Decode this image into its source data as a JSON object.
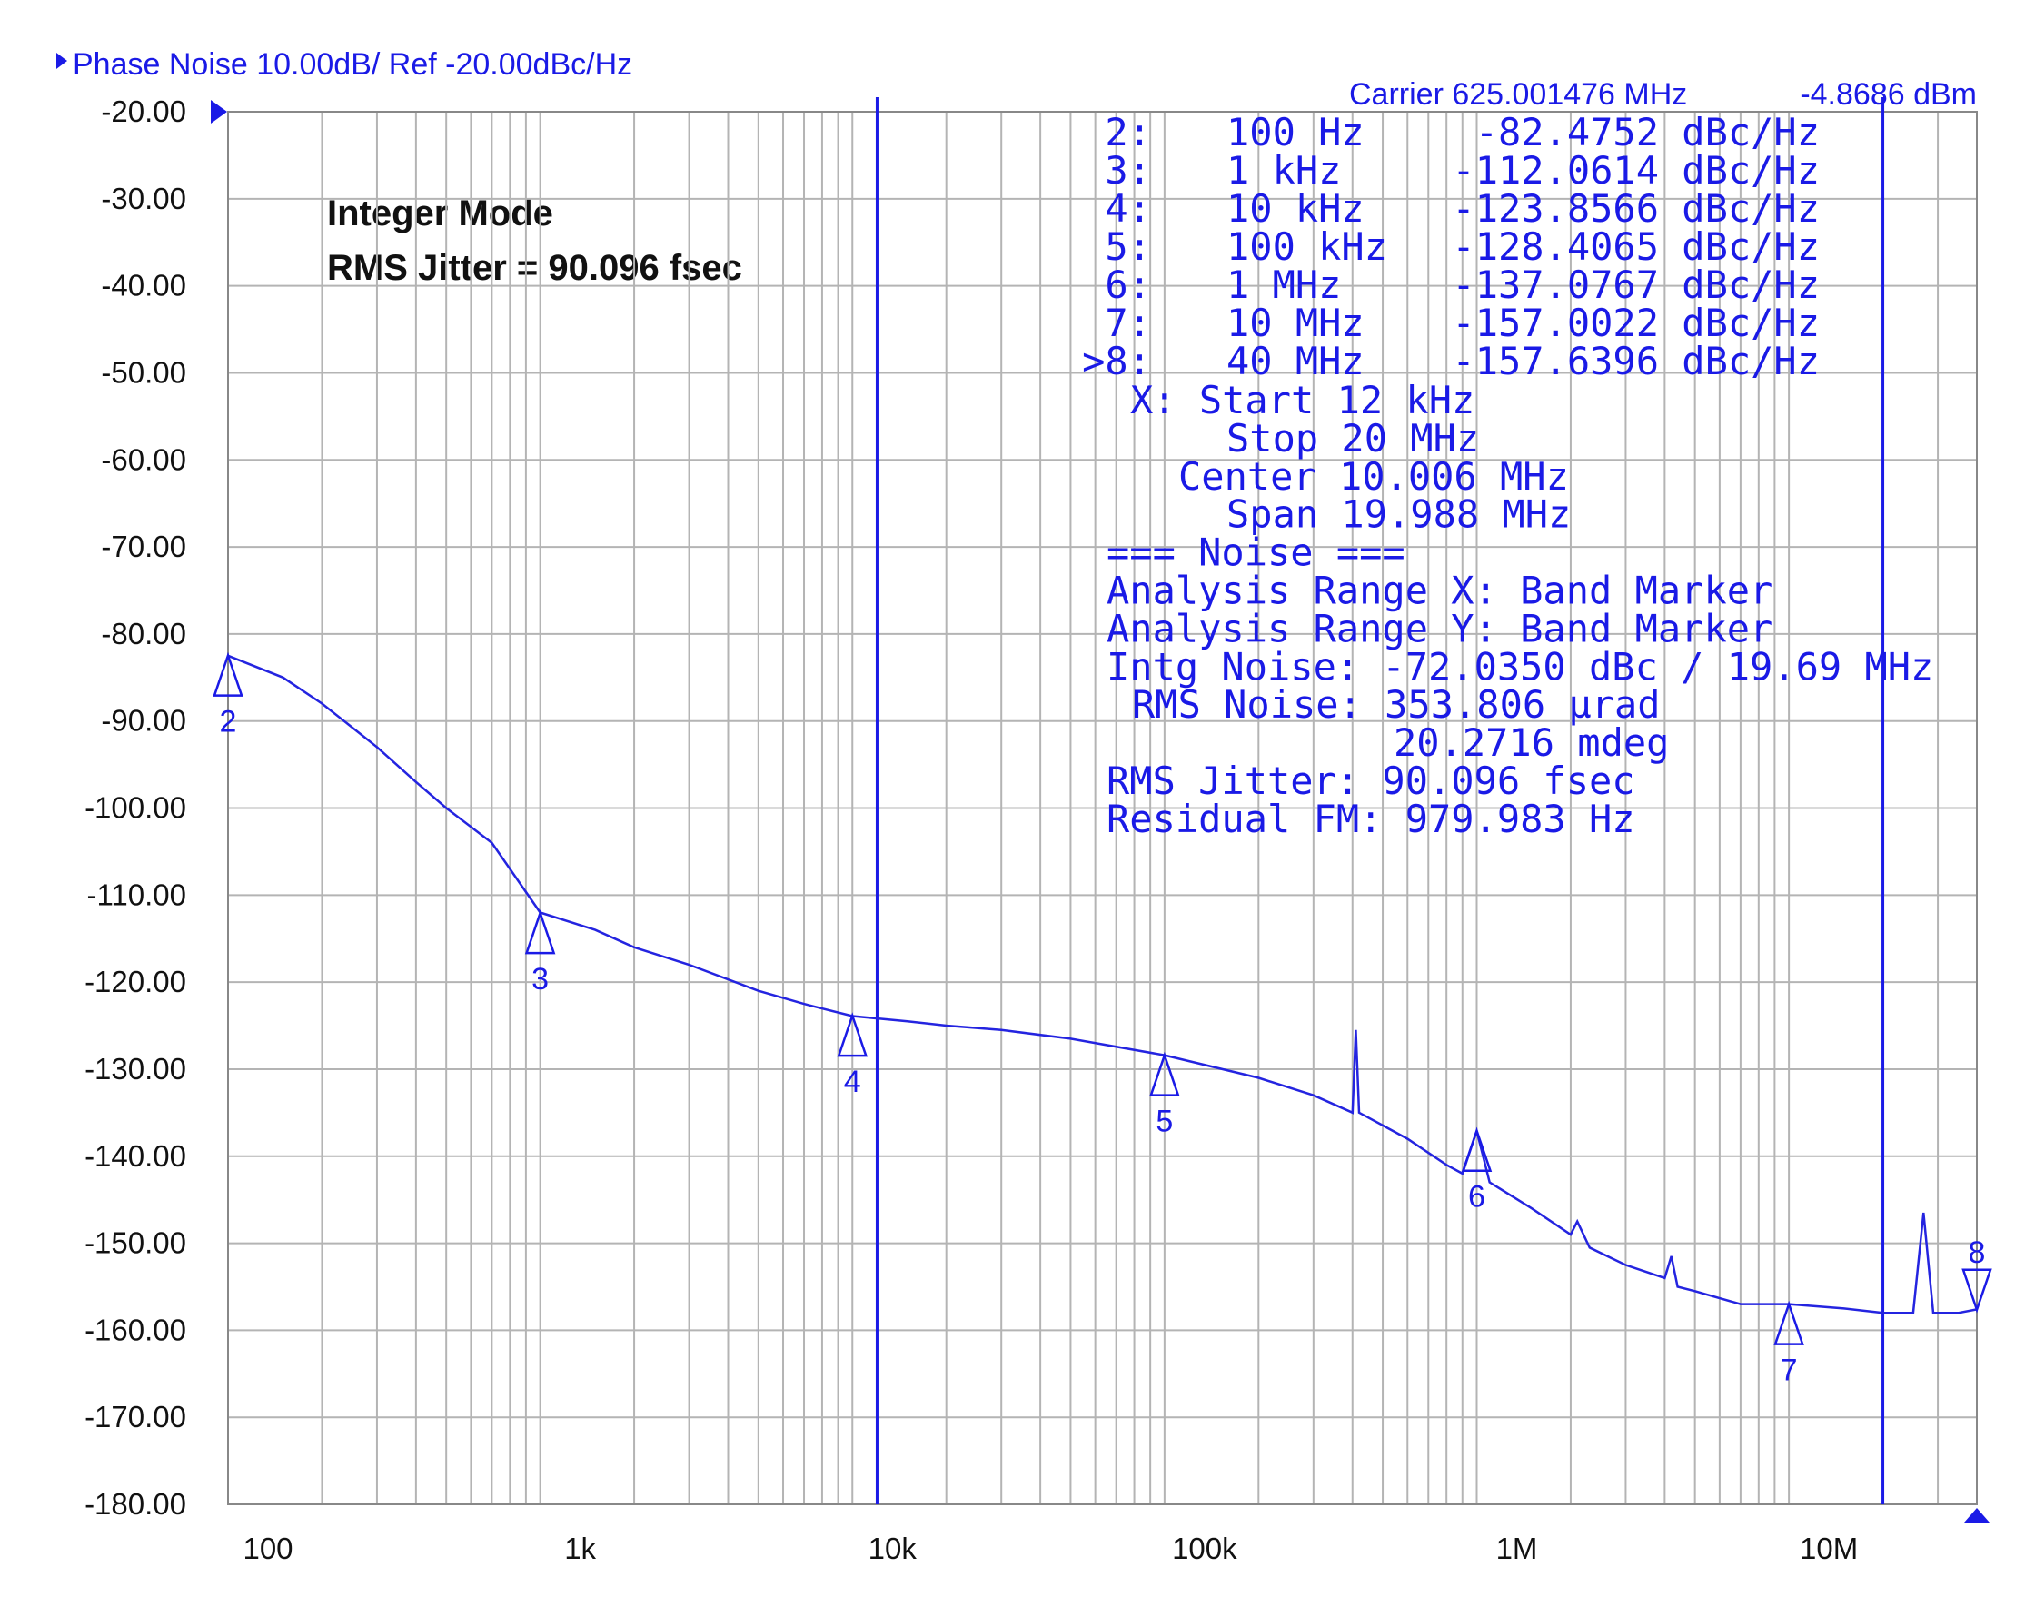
{
  "chart_data": {
    "type": "line",
    "title": "Phase Noise 10.00dB/ Ref -20.00dBc/Hz",
    "carrier": "Carrier 625.001476 MHz",
    "carrier_power": "-4.8686 dBm",
    "annotations": [
      "Integer Mode",
      "RMS Jitter = 90.096 fsec"
    ],
    "x": [
      100,
      150,
      200,
      300,
      400,
      500,
      700,
      1000,
      1500,
      2000,
      3000,
      5000,
      7000,
      10000,
      15000,
      20000,
      30000,
      50000,
      100000,
      200000,
      300000,
      400000,
      410000,
      420000,
      600000,
      800000,
      900000,
      1000000,
      1100000,
      1500000,
      2000000,
      2100000,
      2300000,
      3000000,
      4000000,
      4200000,
      4400000,
      5000000,
      7000000,
      10000000,
      15000000,
      20000000,
      25000000,
      27000000,
      29000000,
      35000000,
      40000000
    ],
    "series": [
      {
        "color": "#2424e0",
        "values": [
          -82.5,
          -85,
          -88,
          -93,
          -97,
          -100,
          -104,
          -112,
          -114,
          -116,
          -118,
          -121,
          -122.5,
          -123.9,
          -124.5,
          -125,
          -125.5,
          -126.5,
          -128.4,
          -131,
          -133,
          -135,
          -125.5,
          -135,
          -138,
          -141,
          -142,
          -137.1,
          -143,
          -146,
          -149,
          -147.5,
          -150.5,
          -152.5,
          -154,
          -151.5,
          -155,
          -155.5,
          -157,
          -157,
          -157.5,
          -158,
          -158,
          -146.5,
          -158,
          -158,
          -157.6
        ]
      }
    ],
    "markers": [
      {
        "tag": "2:",
        "glyph": "2",
        "x": 100,
        "x_label": "100 Hz",
        "y": -82.4752,
        "y_label": "-82.4752 dBc/Hz"
      },
      {
        "tag": "3:",
        "glyph": "3",
        "x": 1000,
        "x_label": "1 kHz",
        "y": -112.0614,
        "y_label": "-112.0614 dBc/Hz"
      },
      {
        "tag": "4:",
        "glyph": "4",
        "x": 10000,
        "x_label": "10 kHz",
        "y": -123.8566,
        "y_label": "-123.8566 dBc/Hz"
      },
      {
        "tag": "5:",
        "glyph": "5",
        "x": 100000,
        "x_label": "100 kHz",
        "y": -128.4065,
        "y_label": "-128.4065 dBc/Hz"
      },
      {
        "tag": "6:",
        "glyph": "6",
        "x": 1000000,
        "x_label": "1 MHz",
        "y": -137.0767,
        "y_label": "-137.0767 dBc/Hz"
      },
      {
        "tag": "7:",
        "glyph": "7",
        "x": 10000000,
        "x_label": "10 MHz",
        "y": -157.0022,
        "y_label": "-157.0022 dBc/Hz"
      },
      {
        "tag": ">8:",
        "glyph": "8",
        "x": 40000000,
        "x_label": "40 MHz",
        "y": -157.6396,
        "y_label": "-157.6396 dBc/Hz"
      }
    ],
    "band": [
      12000,
      20000000
    ],
    "readout": [
      "X: Start 12 kHz",
      "Stop 20 MHz",
      "Center 10.006 MHz",
      "Span 19.988 MHz",
      "=== Noise ===",
      "Analysis Range X: Band Marker",
      "Analysis Range Y: Band Marker",
      "Intg Noise: -72.0350 dBc / 19.69 MHz",
      "RMS Noise: 353.806 µrad",
      "20.2716 mdeg",
      "RMS Jitter: 90.096 fsec",
      "Residual FM: 979.983 Hz"
    ],
    "xscale": "log",
    "grid": true,
    "xlim": [
      100,
      40000000
    ],
    "ylim": [
      -180,
      -20
    ],
    "xticks": [
      {
        "value": 100,
        "label": "100"
      },
      {
        "value": 1000,
        "label": "1k"
      },
      {
        "value": 10000,
        "label": "10k"
      },
      {
        "value": 100000,
        "label": "100k"
      },
      {
        "value": 1000000,
        "label": "1M"
      },
      {
        "value": 10000000,
        "label": "10M"
      }
    ],
    "yticks": [
      {
        "value": -20,
        "label": "-20.00"
      },
      {
        "value": -30,
        "label": "-30.00"
      },
      {
        "value": -40,
        "label": "-40.00"
      },
      {
        "value": -50,
        "label": "-50.00"
      },
      {
        "value": -60,
        "label": "-60.00"
      },
      {
        "value": -70,
        "label": "-70.00"
      },
      {
        "value": -80,
        "label": "-80.00"
      },
      {
        "value": -90,
        "label": "-90.00"
      },
      {
        "value": -100,
        "label": "-100.00"
      },
      {
        "value": -110,
        "label": "-110.00"
      },
      {
        "value": -120,
        "label": "-120.00"
      },
      {
        "value": -130,
        "label": "-130.00"
      },
      {
        "value": -140,
        "label": "-140.00"
      },
      {
        "value": -150,
        "label": "-150.00"
      },
      {
        "value": -160,
        "label": "-160.00"
      },
      {
        "value": -170,
        "label": "-170.00"
      },
      {
        "value": -180,
        "label": "-180.00"
      }
    ]
  }
}
